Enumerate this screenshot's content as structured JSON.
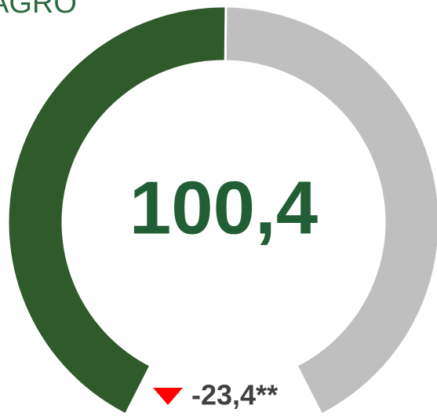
{
  "chart_data": {
    "type": "gauge",
    "title": "AGRO",
    "value": 100.4,
    "value_label": "100,4",
    "change": -23.4,
    "change_label": "-23,4**",
    "range": [
      0,
      200
    ],
    "color": "#2f5a2a",
    "track_color": "#bfbfbf",
    "value_color": "#215e35",
    "change_color": "#ff0000"
  }
}
